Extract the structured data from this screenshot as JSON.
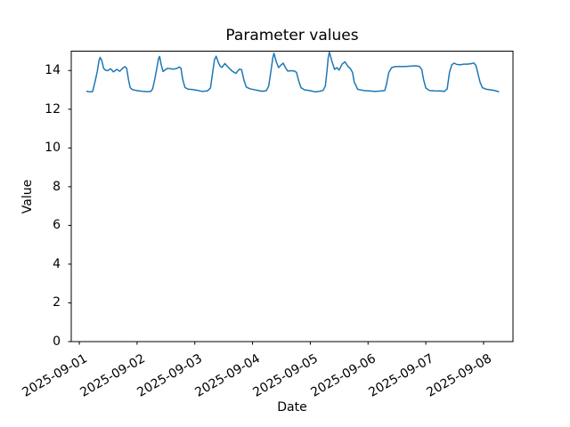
{
  "chart_data": {
    "type": "line",
    "title": "Parameter values",
    "xlabel": "Date",
    "ylabel": "Value",
    "x_tick_labels": [
      "2025-09-01",
      "2025-09-02",
      "2025-09-03",
      "2025-09-04",
      "2025-09-05",
      "2025-09-06",
      "2025-09-07",
      "2025-09-08"
    ],
    "x_tick_days": [
      0,
      1,
      2,
      3,
      4,
      5,
      6,
      7
    ],
    "x_unit": "days since 2025-09-01 00:00",
    "y_tick_labels": [
      "0",
      "2",
      "4",
      "6",
      "8",
      "10",
      "12",
      "14"
    ],
    "y_ticks": [
      0,
      2,
      4,
      6,
      8,
      10,
      12,
      14
    ],
    "xlim_days": [
      -0.14,
      7.51
    ],
    "ylim": [
      0,
      15.0
    ],
    "grid": false,
    "line_color": "#1f77b4",
    "line_width": 1.5,
    "axis_color": "#000000",
    "text_color": "#000000",
    "background_color": "#ffffff",
    "series": [
      {
        "x_days": [
          0.13,
          0.18,
          0.23,
          0.27,
          0.31,
          0.34,
          0.36,
          0.39,
          0.42,
          0.45,
          0.49,
          0.54,
          0.59,
          0.65,
          0.7,
          0.75,
          0.79,
          0.82,
          0.85,
          0.88,
          0.92,
          1.0,
          1.1,
          1.18,
          1.24,
          1.27,
          1.31,
          1.34,
          1.37,
          1.39,
          1.42,
          1.45,
          1.49,
          1.53,
          1.58,
          1.64,
          1.69,
          1.73,
          1.76,
          1.79,
          1.83,
          1.88,
          1.96,
          2.06,
          2.13,
          2.22,
          2.27,
          2.31,
          2.34,
          2.37,
          2.41,
          2.44,
          2.47,
          2.52,
          2.58,
          2.65,
          2.71,
          2.77,
          2.81,
          2.85,
          2.89,
          2.95,
          3.06,
          3.17,
          3.24,
          3.28,
          3.32,
          3.35,
          3.37,
          3.41,
          3.45,
          3.49,
          3.53,
          3.57,
          3.61,
          3.66,
          3.72,
          3.76,
          3.8,
          3.84,
          3.9,
          3.99,
          4.08,
          4.16,
          4.22,
          4.26,
          4.29,
          4.31,
          4.33,
          4.38,
          4.42,
          4.46,
          4.5,
          4.55,
          4.6,
          4.66,
          4.69,
          4.73,
          4.76,
          4.82,
          4.92,
          5.03,
          5.13,
          5.22,
          5.29,
          5.32,
          5.36,
          5.41,
          5.46,
          5.55,
          5.65,
          5.75,
          5.83,
          5.89,
          5.93,
          5.96,
          6.0,
          6.06,
          6.15,
          6.25,
          6.32,
          6.37,
          6.41,
          6.45,
          6.49,
          6.54,
          6.6,
          6.66,
          6.72,
          6.78,
          6.83,
          6.87,
          6.91,
          6.94,
          6.98,
          7.04,
          7.12,
          7.2,
          7.26
        ],
        "values": [
          12.93,
          12.9,
          12.91,
          13.4,
          13.95,
          14.5,
          14.68,
          14.5,
          14.12,
          14.02,
          13.99,
          14.09,
          13.93,
          14.06,
          13.96,
          14.12,
          14.2,
          14.12,
          13.55,
          13.12,
          13.01,
          12.96,
          12.93,
          12.91,
          12.93,
          13.05,
          13.6,
          14.1,
          14.6,
          14.73,
          14.28,
          13.95,
          14.04,
          14.12,
          14.09,
          14.07,
          14.11,
          14.18,
          14.12,
          13.55,
          13.12,
          13.04,
          13.02,
          12.97,
          12.92,
          12.95,
          13.1,
          13.9,
          14.55,
          14.74,
          14.4,
          14.22,
          14.16,
          14.36,
          14.16,
          13.96,
          13.85,
          14.07,
          14.04,
          13.5,
          13.15,
          13.06,
          12.99,
          12.93,
          12.96,
          13.2,
          14.0,
          14.65,
          14.89,
          14.45,
          14.15,
          14.28,
          14.38,
          14.15,
          13.97,
          13.99,
          13.98,
          13.9,
          13.45,
          13.11,
          13.0,
          12.96,
          12.9,
          12.93,
          12.97,
          13.2,
          14.0,
          14.65,
          14.95,
          14.41,
          14.06,
          14.15,
          14.02,
          14.33,
          14.45,
          14.18,
          14.12,
          13.9,
          13.41,
          13.03,
          12.97,
          12.94,
          12.92,
          12.94,
          12.97,
          13.3,
          13.9,
          14.15,
          14.2,
          14.21,
          14.21,
          14.23,
          14.24,
          14.21,
          14.05,
          13.55,
          13.1,
          12.97,
          12.95,
          12.94,
          12.92,
          13.05,
          13.9,
          14.3,
          14.38,
          14.31,
          14.3,
          14.33,
          14.33,
          14.35,
          14.39,
          14.25,
          13.75,
          13.4,
          13.11,
          13.04,
          13.0,
          12.96,
          12.91
        ]
      }
    ]
  }
}
